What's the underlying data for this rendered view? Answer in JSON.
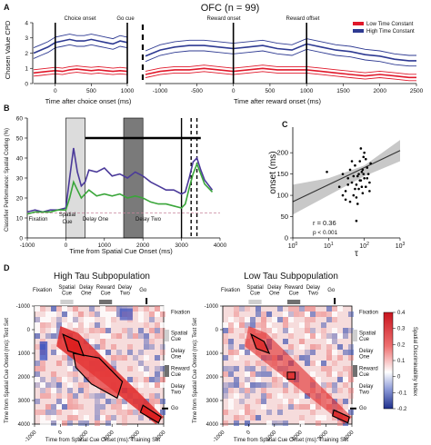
{
  "chart_data": [
    {
      "panel": "A",
      "type": "line",
      "title": "OFC (n = 99)",
      "ylabel": "Chosen Value CPD",
      "ylim": [
        0,
        4
      ],
      "yticks": [
        "0",
        "1",
        "2",
        "3",
        "4"
      ],
      "legend": [
        "Low Time Constant",
        "High Time Constant"
      ],
      "colors": {
        "low": "#e0182a",
        "high": "#2e3a92"
      },
      "events": [
        "Choice onset",
        "Go cue",
        "Reward onset",
        "Reward offset"
      ],
      "left": {
        "xlabel": "Time after choice onset (ms)",
        "xlim": [
          -300,
          1000
        ],
        "xticks": [
          "0",
          "500",
          "1000"
        ],
        "x": [
          -300,
          -200,
          -100,
          0,
          100,
          200,
          300,
          400,
          500,
          600,
          700,
          800,
          900,
          1000
        ],
        "series": [
          {
            "name": "High Time Constant",
            "values": [
              2.0,
              2.2,
              2.4,
              2.7,
              2.8,
              2.9,
              2.8,
              2.8,
              2.9,
              2.8,
              2.7,
              2.6,
              2.8,
              2.7
            ]
          },
          {
            "name": "Low Time Constant",
            "values": [
              0.7,
              0.75,
              0.8,
              0.85,
              0.8,
              0.9,
              0.95,
              0.9,
              0.85,
              0.9,
              0.85,
              0.8,
              0.85,
              0.8
            ]
          }
        ]
      },
      "right": {
        "xlabel": "Time after reward onset (ms)",
        "xlim": [
          -1200,
          2500
        ],
        "xticks": [
          "-1000",
          "-500",
          "0",
          "500",
          "1000",
          "1500",
          "2000",
          "2500"
        ],
        "x": [
          -1200,
          -1000,
          -800,
          -600,
          -400,
          -200,
          0,
          200,
          400,
          600,
          800,
          1000,
          1200,
          1400,
          1600,
          1800,
          2000,
          2200,
          2400,
          2500
        ],
        "series": [
          {
            "name": "High Time Constant",
            "values": [
              1.8,
              2.2,
              2.4,
              2.5,
              2.5,
              2.4,
              2.3,
              2.4,
              2.5,
              2.3,
              2.2,
              2.6,
              2.4,
              2.2,
              2.1,
              1.9,
              1.8,
              1.6,
              1.5,
              1.5
            ]
          },
          {
            "name": "Low Time Constant",
            "values": [
              0.6,
              0.8,
              0.9,
              0.9,
              1.0,
              0.9,
              0.8,
              0.9,
              1.0,
              0.9,
              0.9,
              0.9,
              0.8,
              0.7,
              0.6,
              0.5,
              0.6,
              0.5,
              0.4,
              0.4
            ]
          }
        ]
      }
    },
    {
      "panel": "B",
      "type": "line",
      "ylabel": "Classifier Performance: Spatial Coding (%)",
      "xlabel": "Time from Spatial Cue Onset (ms)",
      "xlim": [
        -1000,
        4000
      ],
      "ylim": [
        0,
        60
      ],
      "xticks": [
        "-1000",
        "0",
        "1000",
        "2000",
        "3000",
        "4000"
      ],
      "yticks": [
        "0",
        "10",
        "20",
        "30",
        "40",
        "50",
        "60"
      ],
      "chance_level": 12.5,
      "epochs": [
        "Fixation",
        "Spatial Cue",
        "Delay One",
        "Delay Two"
      ],
      "shaded_epochs": [
        [
          0,
          500
        ],
        [
          1500,
          2000
        ]
      ],
      "significance_bar": [
        500,
        3500
      ],
      "x": [
        -1000,
        -800,
        -600,
        -400,
        -200,
        0,
        100,
        200,
        300,
        400,
        500,
        600,
        800,
        1000,
        1200,
        1400,
        1600,
        1800,
        2000,
        2200,
        2400,
        2600,
        2800,
        3000,
        3100,
        3200,
        3300,
        3400,
        3500,
        3600,
        3800
      ],
      "series": [
        {
          "name": "High Tau",
          "color": "#4b3a9a",
          "values": [
            13,
            14,
            13,
            14,
            14,
            15,
            30,
            45,
            33,
            26,
            28,
            34,
            33,
            35,
            31,
            32,
            30,
            33,
            31,
            28,
            26,
            24,
            24,
            22,
            23,
            30,
            38,
            40,
            34,
            29,
            24
          ]
        },
        {
          "name": "Low Tau",
          "color": "#3aa63a",
          "values": [
            12,
            13,
            13,
            13,
            14,
            14,
            20,
            28,
            24,
            20,
            22,
            24,
            21,
            22,
            21,
            22,
            20,
            21,
            20,
            18,
            17,
            17,
            16,
            15,
            17,
            25,
            32,
            37,
            32,
            27,
            23
          ]
        }
      ]
    },
    {
      "panel": "C",
      "type": "scatter",
      "xlabel": "τ",
      "ylabel": "onset (ms)",
      "xscale": "log",
      "xlim": [
        1,
        1000
      ],
      "ylim": [
        0,
        260
      ],
      "xticks": [
        "10^0",
        "10^1",
        "10^2",
        "10^3"
      ],
      "yticks": [
        "0",
        "50",
        "100",
        "150",
        "200"
      ],
      "annotation": [
        "r = 0.36",
        "p < 0.001"
      ],
      "fit": {
        "x": [
          1,
          1000
        ],
        "y": [
          85,
          205
        ]
      },
      "points": [
        [
          20,
          120
        ],
        [
          25,
          150
        ],
        [
          30,
          110
        ],
        [
          35,
          140
        ],
        [
          40,
          160
        ],
        [
          45,
          130
        ],
        [
          50,
          100
        ],
        [
          55,
          170
        ],
        [
          60,
          125
        ],
        [
          65,
          145
        ],
        [
          70,
          115
        ],
        [
          75,
          180
        ],
        [
          80,
          135
        ],
        [
          85,
          155
        ],
        [
          90,
          105
        ],
        [
          95,
          190
        ],
        [
          100,
          140
        ],
        [
          110,
          120
        ],
        [
          120,
          165
        ],
        [
          130,
          150
        ],
        [
          140,
          130
        ],
        [
          150,
          175
        ],
        [
          30,
          90
        ],
        [
          40,
          85
        ],
        [
          60,
          95
        ],
        [
          80,
          210
        ],
        [
          100,
          200
        ],
        [
          45,
          180
        ],
        [
          55,
          115
        ],
        [
          70,
          150
        ],
        [
          35,
          125
        ],
        [
          25,
          100
        ],
        [
          120,
          140
        ],
        [
          90,
          160
        ],
        [
          65,
          80
        ],
        [
          50,
          145
        ],
        [
          110,
          185
        ],
        [
          75,
          135
        ],
        [
          85,
          120
        ],
        [
          95,
          150
        ],
        [
          9,
          155
        ],
        [
          60,
          40
        ],
        [
          140,
          110
        ]
      ]
    },
    {
      "panel": "D",
      "type": "heatmap",
      "titles": [
        "High Tau Subpopulation",
        "Low Tau Subpopulation"
      ],
      "xlabel": "Time from Spatial Cue Onset (ms): Training Set",
      "ylabel": "Time from Spatial Cue Onset (ms): Test Set",
      "xticks": [
        "-1000",
        "0",
        "1000",
        "2000",
        "3000",
        "4000"
      ],
      "yticks": [
        "-1000",
        "0",
        "1000",
        "2000",
        "3000",
        "4000"
      ],
      "top_epochs": [
        "Fixation",
        "Spatial Cue",
        "Delay One",
        "Reward Cue",
        "Delay Two",
        "Go"
      ],
      "side_epochs": [
        "Fixation",
        "Spatial Cue",
        "Delay One",
        "Reward Cue",
        "Delay Two",
        "Go"
      ],
      "colorbar": {
        "label": "Spatial Discriminability Index",
        "range": [
          -0.2,
          0.4
        ],
        "ticks": [
          "0.4",
          "0.3",
          "0.2",
          "0.1",
          "0",
          "-0.1",
          "-0.2"
        ]
      }
    }
  ]
}
